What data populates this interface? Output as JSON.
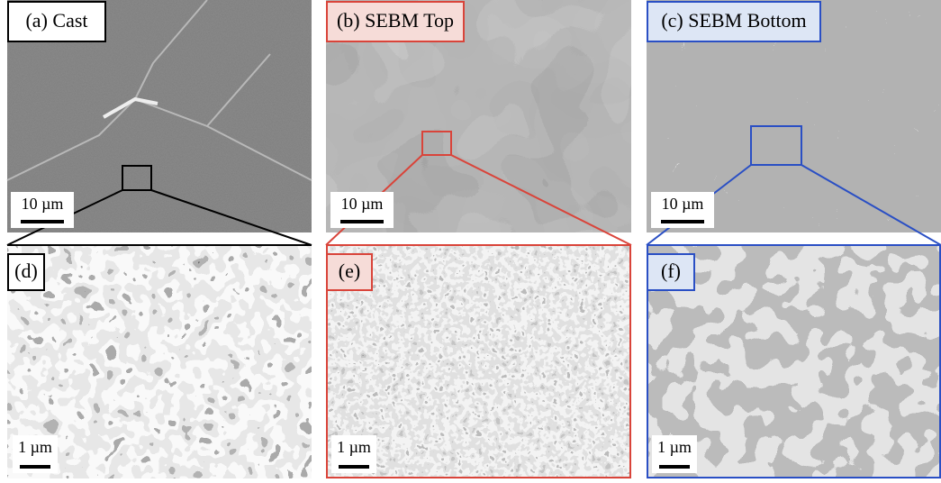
{
  "panels": [
    {
      "label": "(a) Cast",
      "scale_bar": "10 µm"
    },
    {
      "label": "(b) SEBM Top",
      "scale_bar": "10 µm"
    },
    {
      "label": "(c) SEBM Bottom",
      "scale_bar": "10 µm"
    },
    {
      "label": "(d)",
      "scale_bar": "1 µm"
    },
    {
      "label": "(e)",
      "scale_bar": "1 µm"
    },
    {
      "label": "(f)",
      "scale_bar": "1 µm"
    }
  ]
}
